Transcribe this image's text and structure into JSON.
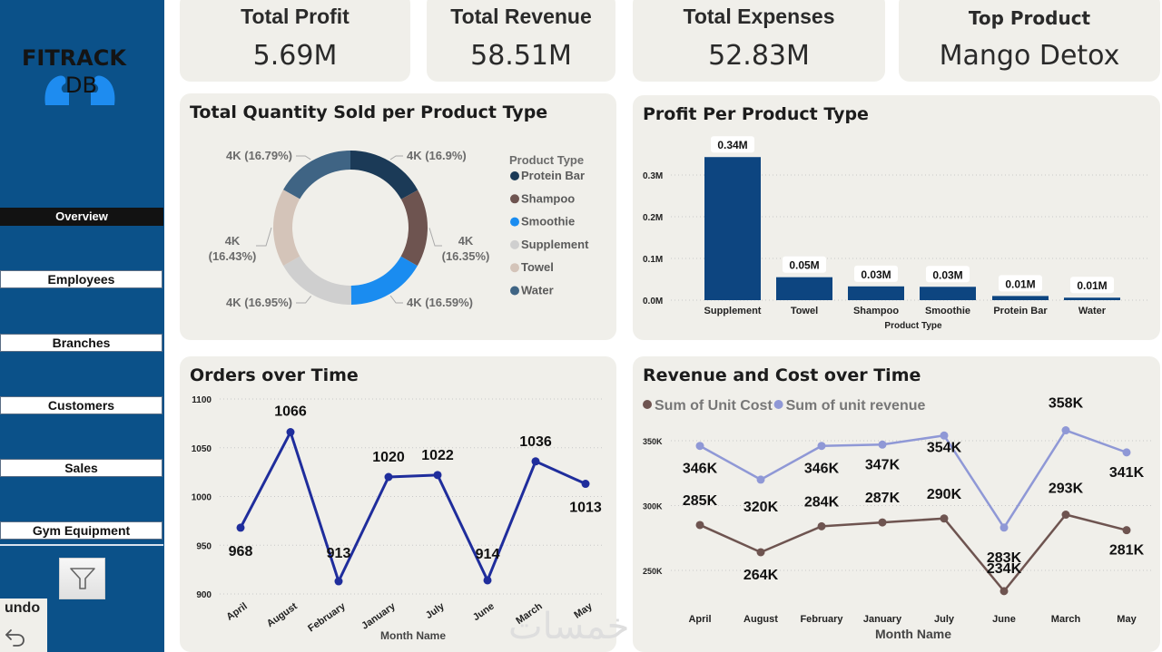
{
  "sidebar": {
    "logo": {
      "title": "FITRACK",
      "subtitle": "DB"
    },
    "active_page": "Overview",
    "nav_items": [
      {
        "label": "Employees"
      },
      {
        "label": "Branches"
      },
      {
        "label": "Customers"
      },
      {
        "label": "Sales"
      },
      {
        "label": "Gym Equipment"
      }
    ],
    "filter_icon": "filter-icon",
    "undo_label": "undo",
    "undo_icon": "undo-arrow-icon"
  },
  "kpis": [
    {
      "title": "Total Profit",
      "value": "5.69M"
    },
    {
      "title": "Total Revenue",
      "value": "58.51M"
    },
    {
      "title": "Total Expenses",
      "value": "52.83M"
    },
    {
      "title": "Top Product",
      "value": "Mango Detox"
    }
  ],
  "chart_data": [
    {
      "id": "donut",
      "type": "pie",
      "title": "Total Quantity Sold per Product Type",
      "legend_title": "Product Type",
      "legend_position": "right",
      "slices": [
        {
          "name": "Protein Bar",
          "percent": 16.9,
          "label": "4K (16.9%)",
          "color": "#1b3a57"
        },
        {
          "name": "Shampoo",
          "percent": 16.35,
          "label": "4K (16.35%)",
          "color": "#6e5450"
        },
        {
          "name": "Smoothie",
          "percent": 16.59,
          "label": "4K (16.59%)",
          "color": "#1a8cf0"
        },
        {
          "name": "Supplement",
          "percent": 16.95,
          "label": "4K (16.95%)",
          "color": "#cfcfcf"
        },
        {
          "name": "Towel",
          "percent": 16.43,
          "label": "4K (16.43%)",
          "color": "#d4c4b9"
        },
        {
          "name": "Water",
          "percent": 16.79,
          "label": "4K (16.79%)",
          "color": "#3f6484"
        }
      ]
    },
    {
      "id": "bars",
      "type": "bar",
      "title": "Profit Per Product Type",
      "xlabel": "Product Type",
      "ylabel": "",
      "categories": [
        "Supplement",
        "Towel",
        "Shampoo",
        "Smoothie",
        "Protein Bar",
        "Water"
      ],
      "values": [
        0.343,
        0.055,
        0.033,
        0.032,
        0.01,
        0.006
      ],
      "data_labels": [
        "0.34M",
        "0.05M",
        "0.03M",
        "0.03M",
        "0.01M",
        "0.01M"
      ],
      "yticks": [
        0,
        0.1,
        0.2,
        0.3
      ],
      "ytick_labels": [
        "0.0M",
        "0.1M",
        "0.2M",
        "0.3M"
      ],
      "ylim": [
        0,
        0.3
      ],
      "color": "#0d4580",
      "grid": true
    },
    {
      "id": "orders",
      "type": "line",
      "title": "Orders over Time",
      "xlabel": "Month Name",
      "ylabel": "",
      "categories": [
        "April",
        "August",
        "February",
        "January",
        "July",
        "June",
        "March",
        "May"
      ],
      "values": [
        968,
        1066,
        913,
        1020,
        1022,
        914,
        1036,
        1013
      ],
      "yticks": [
        900,
        950,
        1000,
        1050,
        1100
      ],
      "ylim": [
        900,
        1100
      ],
      "color": "#1f2d9c",
      "grid": true
    },
    {
      "id": "revcost",
      "type": "line",
      "title": "Revenue and Cost over Time",
      "xlabel": "Month Name",
      "ylabel": "",
      "legend_position": "top-left",
      "categories": [
        "April",
        "August",
        "February",
        "January",
        "July",
        "June",
        "March",
        "May"
      ],
      "series": [
        {
          "name": "Sum of Unit Cost",
          "color": "#6e5450",
          "values": [
            285,
            264,
            284,
            287,
            290,
            234,
            293,
            281
          ],
          "labels": [
            "285K",
            "264K",
            "284K",
            "287K",
            "290K",
            "234K",
            "293K",
            "281K"
          ]
        },
        {
          "name": "Sum of unit revenue",
          "color": "#8f98d6",
          "values": [
            346,
            320,
            346,
            347,
            354,
            283,
            358,
            341
          ],
          "labels": [
            "346K",
            "320K",
            "346K",
            "347K",
            "354K",
            "283K",
            "358K",
            "341K"
          ]
        }
      ],
      "yticks": [
        250,
        300,
        350
      ],
      "ytick_labels": [
        "250K",
        "300K",
        "350K"
      ],
      "ylim": [
        250,
        350
      ],
      "grid": true
    }
  ],
  "watermark": "خمسات"
}
